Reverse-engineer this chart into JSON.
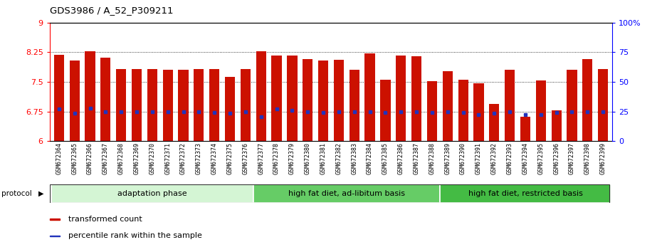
{
  "title": "GDS3986 / A_52_P309211",
  "samples": [
    "GSM672364",
    "GSM672365",
    "GSM672366",
    "GSM672367",
    "GSM672368",
    "GSM672369",
    "GSM672370",
    "GSM672371",
    "GSM672372",
    "GSM672373",
    "GSM672374",
    "GSM672375",
    "GSM672376",
    "GSM672377",
    "GSM672378",
    "GSM672379",
    "GSM672380",
    "GSM672381",
    "GSM672382",
    "GSM672383",
    "GSM672384",
    "GSM672385",
    "GSM672386",
    "GSM672387",
    "GSM672388",
    "GSM672389",
    "GSM672390",
    "GSM672391",
    "GSM672392",
    "GSM672393",
    "GSM672394",
    "GSM672395",
    "GSM672396",
    "GSM672397",
    "GSM672398",
    "GSM672399"
  ],
  "bar_values": [
    8.18,
    8.05,
    8.27,
    8.12,
    7.82,
    7.82,
    7.82,
    7.8,
    7.8,
    7.83,
    7.82,
    7.63,
    7.82,
    8.27,
    8.17,
    8.17,
    8.07,
    8.05,
    8.06,
    7.8,
    8.22,
    7.55,
    8.17,
    8.15,
    7.52,
    7.78,
    7.55,
    7.47,
    6.95,
    7.8,
    6.62,
    7.53,
    6.78,
    7.8,
    8.07,
    7.82
  ],
  "percentile_values": [
    6.82,
    6.71,
    6.83,
    6.75,
    6.75,
    6.75,
    6.75,
    6.75,
    6.75,
    6.75,
    6.72,
    6.7,
    6.75,
    6.62,
    6.82,
    6.78,
    6.75,
    6.73,
    6.75,
    6.75,
    6.75,
    6.73,
    6.75,
    6.75,
    6.72,
    6.75,
    6.72,
    6.68,
    6.7,
    6.75,
    6.68,
    6.68,
    6.72,
    6.75,
    6.75,
    6.75
  ],
  "groups": [
    {
      "label": "adaptation phase",
      "start": 0,
      "end": 13,
      "color": "#d4f5d4"
    },
    {
      "label": "high fat diet, ad-libitum basis",
      "start": 13,
      "end": 25,
      "color": "#66cc66"
    },
    {
      "label": "high fat diet, restricted basis",
      "start": 25,
      "end": 36,
      "color": "#44bb44"
    }
  ],
  "ylim": [
    6,
    9
  ],
  "yticks_left": [
    6,
    6.75,
    7.5,
    8.25,
    9
  ],
  "ytick_labels_left": [
    "6",
    "6.75",
    "7.5",
    "8.25",
    "9"
  ],
  "yticks_right_pct": [
    0,
    25,
    50,
    75,
    100
  ],
  "ytick_labels_right": [
    "0",
    "25",
    "50",
    "75",
    "100%"
  ],
  "bar_color": "#cc1100",
  "percentile_color": "#2233bb",
  "bar_width": 0.65,
  "legend_items": [
    {
      "label": "transformed count",
      "color": "#cc1100"
    },
    {
      "label": "percentile rank within the sample",
      "color": "#2233bb"
    }
  ],
  "protocol_label": "protocol",
  "protocol_arrow": "▶"
}
